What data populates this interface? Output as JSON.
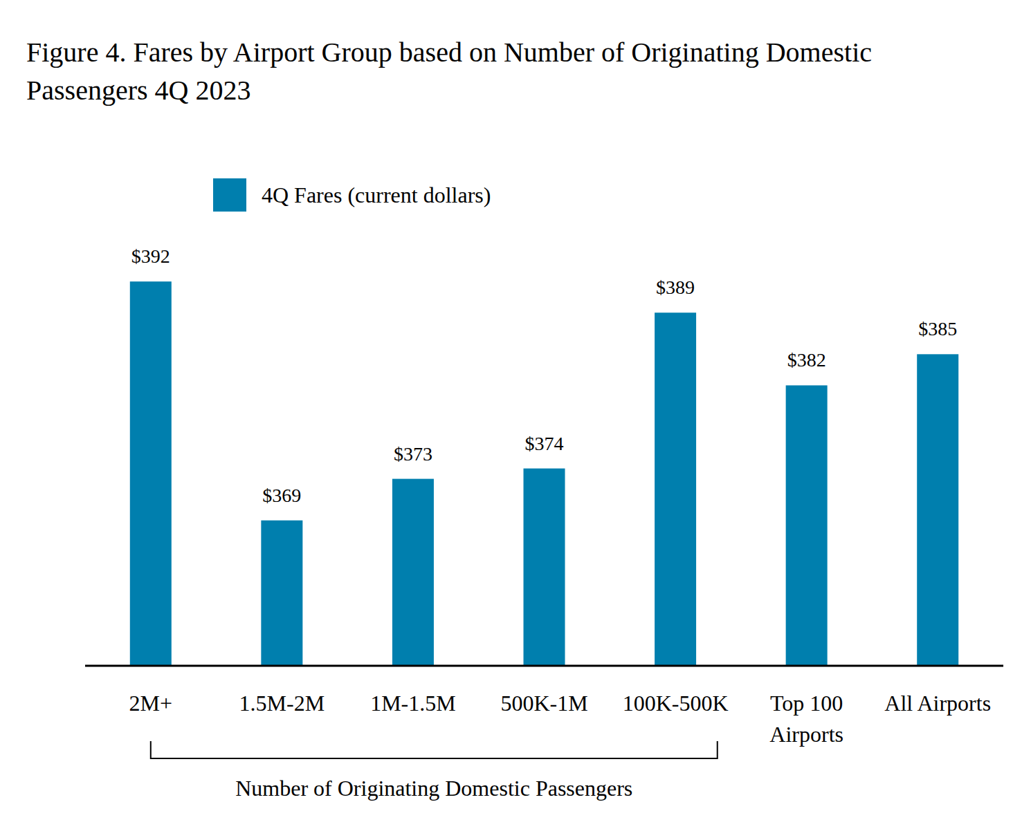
{
  "chart_data": {
    "type": "bar",
    "title": "Figure 4. Fares by Airport Group based on Number of Originating Domestic Passengers 4Q 2023",
    "categories": [
      "2M+",
      "1.5M-2M",
      "1M-1.5M",
      "500K-1M",
      "100K-500K",
      "Top 100 Airports",
      "All Airports"
    ],
    "series": [
      {
        "name": "4Q Fares (current dollars)",
        "color": "#007fae",
        "values": [
          392,
          369,
          373,
          374,
          389,
          382,
          385
        ],
        "value_labels": [
          "$392",
          "$369",
          "$373",
          "$374",
          "$389",
          "$382",
          "$385"
        ]
      }
    ],
    "ylim": [
      355,
      400
    ],
    "yticks": [],
    "tick_labels": "x",
    "data_labels": true,
    "grid": false,
    "legend": "top",
    "annotations": [
      {
        "text": "Number of Originating Domestic Passengers",
        "from": "2M+",
        "to": "100K-500K"
      }
    ]
  }
}
